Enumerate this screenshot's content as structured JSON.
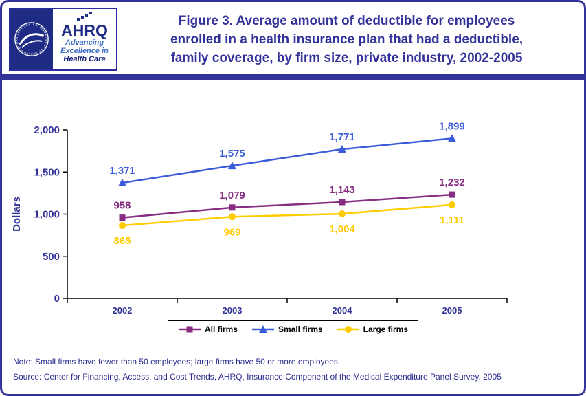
{
  "header": {
    "logo": {
      "wordmark": "AHRQ",
      "tagline_lines": [
        "Advancing",
        "Excellence in",
        "Health Care"
      ]
    },
    "title_lines": [
      "Figure 3. Average amount of deductible for employees",
      "enrolled in a health insurance plan that had a deductible,",
      "family coverage, by firm size, private industry, 2002-2005"
    ]
  },
  "chart_data": {
    "type": "line",
    "title": "Figure 3. Average amount of deductible for employees enrolled in a health insurance plan that had a deductible, family coverage, by firm size, private industry, 2002-2005",
    "categories": [
      "2002",
      "2003",
      "2004",
      "2005"
    ],
    "series": [
      {
        "name": "All firms",
        "values": [
          958,
          1079,
          1143,
          1232
        ],
        "color": "#862D82",
        "marker": "square",
        "label_position": "above"
      },
      {
        "name": "Small firms",
        "values": [
          1371,
          1575,
          1771,
          1899
        ],
        "color": "#3A5BD9",
        "marker": "triangle",
        "label_position": "above"
      },
      {
        "name": "Large firms",
        "values": [
          865,
          969,
          1004,
          1111
        ],
        "color": "#FFCC00",
        "marker": "circle",
        "label_position": "below"
      }
    ],
    "xlabel": "",
    "ylabel": "Dollars",
    "ylim": [
      0,
      2000
    ],
    "yticks": [
      0,
      500,
      1000,
      1500,
      2000
    ],
    "grid": false,
    "legend_position": "bottom",
    "axis_text_color": "#333399",
    "spine_color": "#000000"
  },
  "footer": {
    "note": "Note: Small firms have fewer than 50 employees; large firms have 50 or more employees.",
    "source": "Source: Center for Financing, Access, and Cost Trends, AHRQ, Insurance Component of the Medical Expenditure Panel Survey, 2005"
  },
  "theme": {
    "accent": "#333399"
  }
}
